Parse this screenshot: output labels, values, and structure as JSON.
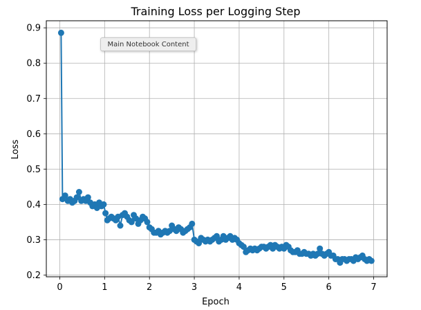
{
  "tooltip": {
    "text": "Main Notebook Content"
  },
  "chart_data": {
    "type": "line",
    "title": "Training Loss per Logging Step",
    "xlabel": "Epoch",
    "ylabel": "Loss",
    "xlim": [
      -0.3,
      7.3
    ],
    "ylim": [
      0.195,
      0.92
    ],
    "xticks": [
      0,
      1,
      2,
      3,
      4,
      5,
      6,
      7
    ],
    "yticks": [
      0.2,
      0.3,
      0.4,
      0.5,
      0.6,
      0.7,
      0.8,
      0.9
    ],
    "xtick_labels": [
      "0",
      "1",
      "2",
      "3",
      "4",
      "5",
      "6",
      "7"
    ],
    "ytick_labels": [
      "0.2",
      "0.3",
      "0.4",
      "0.5",
      "0.6",
      "0.7",
      "0.8",
      "0.9"
    ],
    "grid": true,
    "series_color": "#1f77b4",
    "series": [
      {
        "x": [
          0.03,
          0.06,
          0.12,
          0.18,
          0.23,
          0.28,
          0.33,
          0.38,
          0.43,
          0.48,
          0.53,
          0.58,
          0.63,
          0.68,
          0.73,
          0.78,
          0.83,
          0.88,
          0.93,
          0.98,
          1.02,
          1.06,
          1.1,
          1.15,
          1.2,
          1.25,
          1.3,
          1.35,
          1.4,
          1.45,
          1.5,
          1.55,
          1.6,
          1.65,
          1.7,
          1.75,
          1.8,
          1.85,
          1.9,
          1.95,
          2.0,
          2.05,
          2.1,
          2.15,
          2.2,
          2.25,
          2.3,
          2.35,
          2.4,
          2.45,
          2.5,
          2.55,
          2.6,
          2.65,
          2.7,
          2.75,
          2.8,
          2.85,
          2.9,
          2.95,
          3.0,
          3.05,
          3.1,
          3.15,
          3.2,
          3.25,
          3.3,
          3.35,
          3.4,
          3.45,
          3.5,
          3.55,
          3.6,
          3.65,
          3.7,
          3.75,
          3.8,
          3.85,
          3.9,
          3.95,
          4.0,
          4.05,
          4.1,
          4.15,
          4.2,
          4.25,
          4.3,
          4.35,
          4.4,
          4.45,
          4.5,
          4.55,
          4.6,
          4.65,
          4.7,
          4.75,
          4.8,
          4.85,
          4.9,
          4.95,
          5.0,
          5.05,
          5.1,
          5.15,
          5.2,
          5.25,
          5.3,
          5.35,
          5.4,
          5.45,
          5.5,
          5.55,
          5.6,
          5.65,
          5.7,
          5.75,
          5.8,
          5.85,
          5.9,
          5.95,
          6.0,
          6.05,
          6.1,
          6.15,
          6.2,
          6.25,
          6.3,
          6.35,
          6.4,
          6.45,
          6.5,
          6.55,
          6.6,
          6.65,
          6.7,
          6.75,
          6.8,
          6.85,
          6.9,
          6.95
        ],
        "values": [
          0.886,
          0.415,
          0.425,
          0.41,
          0.415,
          0.405,
          0.41,
          0.42,
          0.435,
          0.41,
          0.415,
          0.41,
          0.42,
          0.405,
          0.395,
          0.4,
          0.39,
          0.405,
          0.395,
          0.4,
          0.375,
          0.355,
          0.36,
          0.365,
          0.36,
          0.355,
          0.365,
          0.34,
          0.37,
          0.375,
          0.365,
          0.355,
          0.35,
          0.37,
          0.36,
          0.345,
          0.355,
          0.365,
          0.36,
          0.35,
          0.335,
          0.33,
          0.32,
          0.32,
          0.325,
          0.315,
          0.32,
          0.325,
          0.32,
          0.325,
          0.34,
          0.33,
          0.325,
          0.335,
          0.33,
          0.32,
          0.325,
          0.33,
          0.335,
          0.345,
          0.3,
          0.295,
          0.29,
          0.305,
          0.3,
          0.295,
          0.3,
          0.295,
          0.3,
          0.305,
          0.31,
          0.295,
          0.3,
          0.31,
          0.3,
          0.305,
          0.31,
          0.3,
          0.305,
          0.3,
          0.29,
          0.285,
          0.28,
          0.265,
          0.27,
          0.275,
          0.27,
          0.275,
          0.27,
          0.275,
          0.28,
          0.28,
          0.275,
          0.28,
          0.285,
          0.275,
          0.285,
          0.28,
          0.275,
          0.28,
          0.275,
          0.285,
          0.28,
          0.27,
          0.265,
          0.265,
          0.27,
          0.26,
          0.26,
          0.265,
          0.26,
          0.26,
          0.255,
          0.26,
          0.255,
          0.26,
          0.275,
          0.26,
          0.255,
          0.26,
          0.265,
          0.255,
          0.255,
          0.245,
          0.245,
          0.235,
          0.245,
          0.245,
          0.24,
          0.245,
          0.245,
          0.24,
          0.25,
          0.245,
          0.25,
          0.255,
          0.245,
          0.24,
          0.245,
          0.24
        ]
      }
    ]
  }
}
